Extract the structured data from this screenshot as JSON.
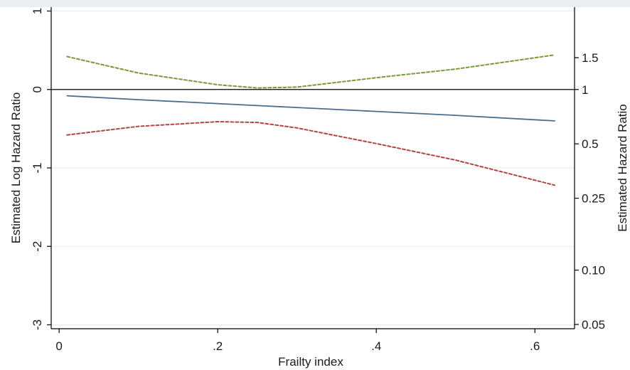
{
  "chart_data": {
    "type": "line",
    "title": "",
    "xlabel": "Frailty index",
    "ylabel": "Estimated Log Hazard Ratio",
    "y2label": "Estimated Hazard Ratio",
    "xlim": [
      -0.01,
      0.65
    ],
    "ylim": [
      -3.05,
      1.05
    ],
    "x_ticks": [
      0,
      0.2,
      0.4,
      0.6
    ],
    "x_tick_labels": [
      "0",
      ".2",
      ".4",
      ".6"
    ],
    "y_ticks": [
      1,
      0,
      -1,
      -2,
      -3
    ],
    "y_tick_labels": [
      "1",
      "0",
      "-1",
      "-2",
      "-3"
    ],
    "y2_ticks": [
      1.5,
      1,
      0.5,
      0.25,
      0.1,
      0.05
    ],
    "y2_tick_labels": [
      "1.5",
      "1",
      "0.5",
      "0.25",
      "0.10",
      "0.05"
    ],
    "reference_line": {
      "y": 0,
      "color": "#000000"
    },
    "grid": true,
    "series": [
      {
        "color": "#4a6d8c",
        "style": "solid",
        "x": [
          0.01,
          0.1,
          0.2,
          0.3,
          0.4,
          0.5,
          0.625
        ],
        "y": [
          -0.08,
          -0.13,
          -0.18,
          -0.23,
          -0.28,
          -0.33,
          -0.4
        ]
      },
      {
        "color": "#7a9a3a",
        "style": "dashed",
        "x": [
          0.01,
          0.1,
          0.2,
          0.25,
          0.3,
          0.4,
          0.5,
          0.625
        ],
        "y": [
          0.42,
          0.21,
          0.06,
          0.02,
          0.03,
          0.15,
          0.26,
          0.44
        ]
      },
      {
        "color": "#b54545",
        "style": "dashed",
        "x": [
          0.01,
          0.1,
          0.2,
          0.25,
          0.3,
          0.4,
          0.5,
          0.625
        ],
        "y": [
          -0.58,
          -0.47,
          -0.41,
          -0.42,
          -0.49,
          -0.69,
          -0.9,
          -1.22
        ]
      }
    ]
  }
}
